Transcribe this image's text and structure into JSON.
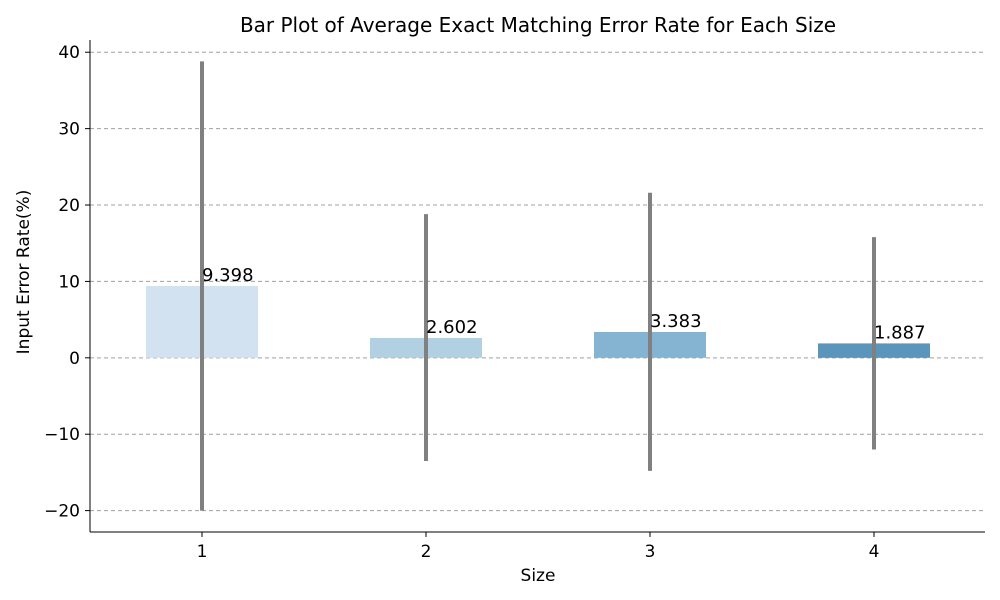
{
  "chart_data": {
    "type": "bar",
    "title": "Bar Plot of Average Exact Matching Error Rate for Each Size",
    "xlabel": "Size",
    "ylabel": "Input Error Rate(%)",
    "categories": [
      "1",
      "2",
      "3",
      "4"
    ],
    "values": [
      9.398,
      2.602,
      3.383,
      1.887
    ],
    "value_labels": [
      "9.398",
      "2.602",
      "3.383",
      "1.887"
    ],
    "error_bars": [
      {
        "low": -20.0,
        "high": 38.8
      },
      {
        "low": -13.5,
        "high": 18.8
      },
      {
        "low": -14.8,
        "high": 21.6
      },
      {
        "low": -12.0,
        "high": 15.8
      }
    ],
    "ylim": [
      -22.8,
      41.6
    ],
    "yticks": [
      -20,
      -10,
      0,
      10,
      20,
      30,
      40
    ],
    "ytick_labels": [
      "−20",
      "−10",
      "0",
      "10",
      "20",
      "30",
      "40"
    ],
    "bar_colors": [
      "#d3e2f0",
      "#b1d0e2",
      "#84b4d1",
      "#5a96bc"
    ],
    "errorbar_color": "#808080",
    "grid": true,
    "grid_color": "#a0a0a0",
    "legend": "none"
  }
}
